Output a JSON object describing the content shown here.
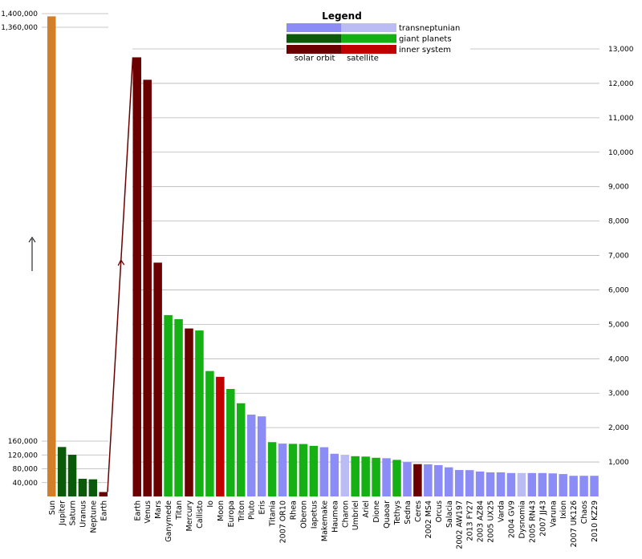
{
  "chart_data": [
    {
      "type": "bar",
      "panel": "left",
      "categories": [
        "Sun",
        "Jupiter",
        "Saturn",
        "Uranus",
        "Neptune",
        "Earth"
      ],
      "values": [
        1392000,
        142984,
        120536,
        51118,
        49528,
        12756
      ],
      "classes": [
        "star",
        "giant planets",
        "giant planets",
        "giant planets",
        "giant planets",
        "inner system"
      ],
      "broken_axis": true,
      "lower_ticks": [
        40000,
        80000,
        120000,
        160000
      ],
      "lower_tick_labels": [
        "40,000",
        "80,000",
        "120,000",
        "160,000"
      ],
      "upper_ticks": [
        1360000,
        1400000
      ],
      "upper_tick_labels": [
        "1,360,000",
        "1,400,000"
      ],
      "axis_break_arrow": "up-arrow"
    },
    {
      "type": "bar",
      "panel": "right",
      "ylim": [
        0,
        13000
      ],
      "yticks": [
        1000,
        2000,
        3000,
        4000,
        5000,
        6000,
        7000,
        8000,
        9000,
        10000,
        11000,
        12000,
        13000
      ],
      "ytick_labels": [
        "1,000",
        "2,000",
        "3,000",
        "4,000",
        "5,000",
        "6,000",
        "7,000",
        "8,000",
        "9,000",
        "10,000",
        "11,000",
        "12,000",
        "13,000"
      ],
      "axis_position": "right",
      "categories": [
        "Earth",
        "Venus",
        "Mars",
        "Ganymede",
        "Titan",
        "Mercury",
        "Callisto",
        "Io",
        "Moon",
        "Europa",
        "Triton",
        "Pluto",
        "Eris",
        "Titania",
        "2007 OR10",
        "Rhea",
        "Oberon",
        "Iapetus",
        "Makemake",
        "Haumea",
        "Charon",
        "Umbriel",
        "Ariel",
        "Dione",
        "Quaoar",
        "Tethys",
        "Sedna",
        "Ceres",
        "2002 MS4",
        "Orcus",
        "Salacia",
        "2002 AW197",
        "2013 FY27",
        "2003 AZ84",
        "2005 UX25",
        "Varda",
        "2004 GV9",
        "Dysnomia",
        "2005 RN43",
        "2007 JJ43",
        "Varuna",
        "Ixion",
        "2007 UK126",
        "Chaos",
        "2010 KZ29"
      ],
      "values": [
        12756,
        12104,
        6792,
        5268,
        5150,
        4879,
        4821,
        3643,
        3475,
        3122,
        2707,
        2377,
        2326,
        1578,
        1535,
        1528,
        1523,
        1470,
        1430,
        1240,
        1212,
        1169,
        1158,
        1123,
        1110,
        1062,
        995,
        939,
        934,
        910,
        846,
        768,
        765,
        724,
        700,
        700,
        680,
        680,
        680,
        680,
        670,
        650,
        600,
        600,
        600
      ],
      "classes": [
        "inner system solar orbit",
        "inner system solar orbit",
        "inner system solar orbit",
        "giant planets satellite",
        "giant planets satellite",
        "inner system solar orbit",
        "giant planets satellite",
        "giant planets satellite",
        "inner system satellite",
        "giant planets satellite",
        "giant planets satellite",
        "transneptunian solar orbit",
        "transneptunian solar orbit",
        "giant planets satellite",
        "transneptunian solar orbit",
        "giant planets satellite",
        "giant planets satellite",
        "giant planets satellite",
        "transneptunian solar orbit",
        "transneptunian solar orbit",
        "transneptunian satellite",
        "giant planets satellite",
        "giant planets satellite",
        "giant planets satellite",
        "transneptunian solar orbit",
        "giant planets satellite",
        "transneptunian solar orbit",
        "inner system solar orbit",
        "transneptunian solar orbit",
        "transneptunian solar orbit",
        "transneptunian solar orbit",
        "transneptunian solar orbit",
        "transneptunian solar orbit",
        "transneptunian solar orbit",
        "transneptunian solar orbit",
        "transneptunian solar orbit",
        "transneptunian solar orbit",
        "transneptunian satellite",
        "transneptunian solar orbit",
        "transneptunian solar orbit",
        "transneptunian solar orbit",
        "transneptunian solar orbit",
        "transneptunian solar orbit",
        "transneptunian solar orbit",
        "transneptunian solar orbit"
      ]
    }
  ],
  "legend": {
    "title": "Legend",
    "rows": [
      {
        "label": "transneptunian",
        "solar_color": "#8c8cf7",
        "satellite_color": "#bcbcf5"
      },
      {
        "label": "giant planets",
        "solar_color": "#0a5a0a",
        "satellite_color": "#14b014"
      },
      {
        "label": "inner system",
        "solar_color": "#6b0000",
        "satellite_color": "#c00000"
      }
    ],
    "column_labels": [
      "solar orbit",
      "satellite"
    ]
  },
  "colors": {
    "star": "#d27f27",
    "giant_planets_solar": "#0a5a0a",
    "giant_planets_satellite": "#14b014",
    "inner_solar": "#6b0000",
    "inner_satellite": "#c00000",
    "trans_solar": "#8c8cf7",
    "trans_satellite": "#bcbcf5",
    "grid": "#b5b5b5",
    "connector": "#6b0000"
  }
}
